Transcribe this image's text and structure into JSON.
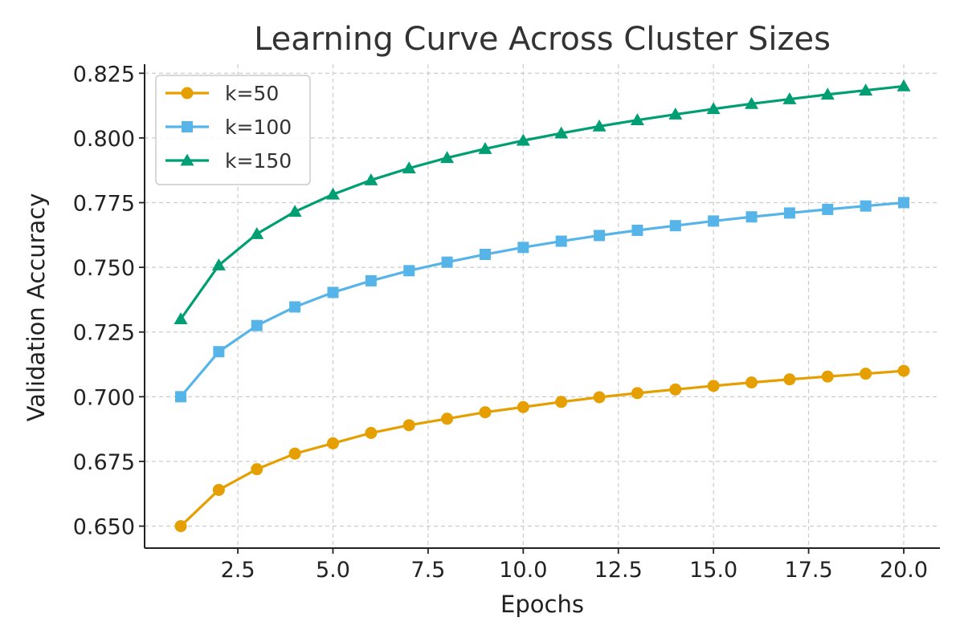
{
  "chart_data": {
    "type": "line",
    "title": "Learning Curve Across Cluster Sizes",
    "xlabel": "Epochs",
    "ylabel": "Validation Accuracy",
    "x": [
      1,
      2,
      3,
      4,
      5,
      6,
      7,
      8,
      9,
      10,
      11,
      12,
      13,
      14,
      15,
      16,
      17,
      18,
      19,
      20
    ],
    "xlim": [
      0.05,
      20.95
    ],
    "ylim": [
      0.6415,
      0.8285
    ],
    "xticks": [
      2.5,
      5.0,
      7.5,
      10.0,
      12.5,
      15.0,
      17.5,
      20.0
    ],
    "xtick_labels": [
      "2.5",
      "5.0",
      "7.5",
      "10.0",
      "12.5",
      "15.0",
      "17.5",
      "20.0"
    ],
    "yticks": [
      0.65,
      0.675,
      0.7,
      0.725,
      0.75,
      0.775,
      0.8,
      0.825
    ],
    "ytick_labels": [
      "0.650",
      "0.675",
      "0.700",
      "0.725",
      "0.750",
      "0.775",
      "0.800",
      "0.825"
    ],
    "grid": true,
    "legend_position": "top-left",
    "series": [
      {
        "name": "k=50",
        "color": "#E69F00",
        "marker": "circle",
        "values": [
          0.65,
          0.664,
          0.672,
          0.678,
          0.682,
          0.686,
          0.689,
          0.6915,
          0.694,
          0.696,
          0.698,
          0.6998,
          0.7014,
          0.7028,
          0.7042,
          0.7055,
          0.7067,
          0.7078,
          0.7089,
          0.71
        ]
      },
      {
        "name": "k=100",
        "color": "#56B4E9",
        "marker": "square",
        "values": [
          0.7,
          0.7174,
          0.7275,
          0.7347,
          0.7403,
          0.7448,
          0.7487,
          0.752,
          0.755,
          0.7577,
          0.7601,
          0.7623,
          0.7643,
          0.7661,
          0.7679,
          0.7695,
          0.771,
          0.7724,
          0.7737,
          0.775
        ]
      },
      {
        "name": "k=150",
        "color": "#009E73",
        "marker": "triangle",
        "values": [
          0.73,
          0.7508,
          0.7629,
          0.7715,
          0.7782,
          0.7837,
          0.7883,
          0.7923,
          0.7958,
          0.799,
          0.8018,
          0.8045,
          0.8069,
          0.8091,
          0.8112,
          0.8132,
          0.815,
          0.8168,
          0.8184,
          0.82
        ]
      }
    ]
  }
}
